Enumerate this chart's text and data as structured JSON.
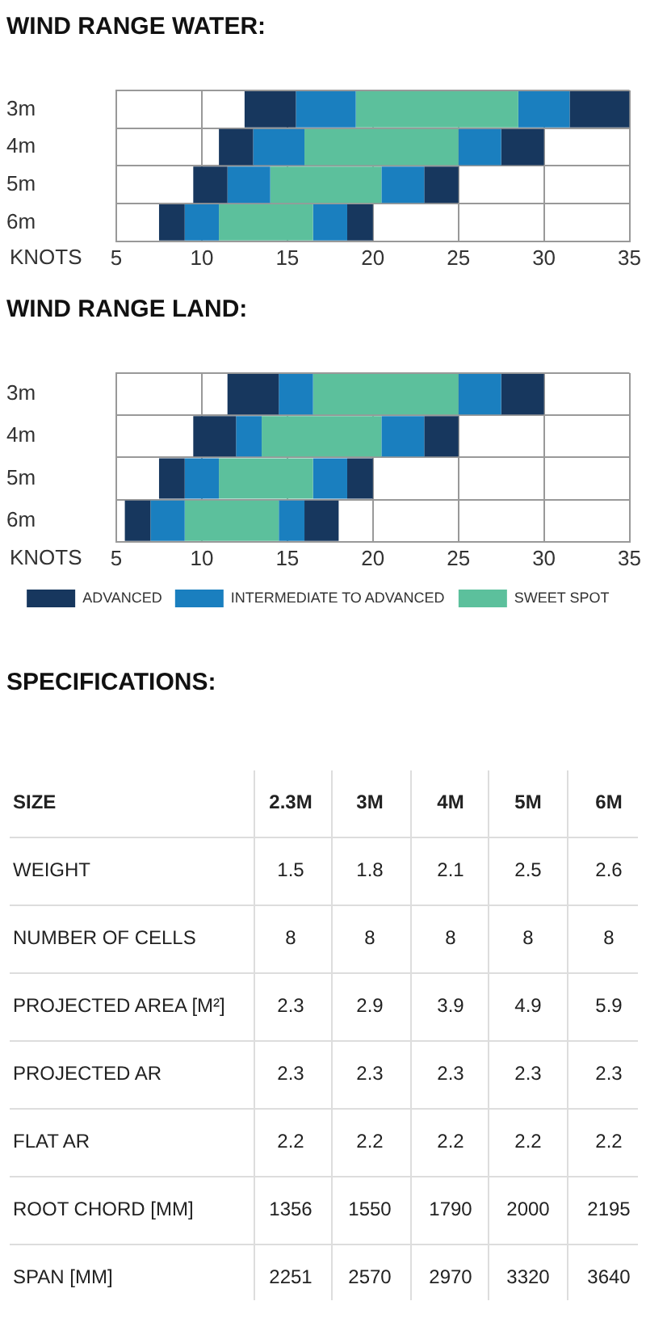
{
  "chart_data": [
    {
      "type": "bar",
      "title": "WIND RANGE WATER:",
      "orientation": "horizontal",
      "categories": [
        "3m",
        "4m",
        "5m",
        "6m"
      ],
      "series": [
        {
          "color": "#17375e",
          "base": [
            12.5,
            11,
            9.5,
            7.5
          ],
          "values": [
            3,
            2,
            2,
            1.5
          ]
        },
        {
          "color": "#1a7fbf",
          "base": [
            15.5,
            13,
            11.5,
            9
          ],
          "values": [
            3.5,
            3,
            2.5,
            2
          ]
        },
        {
          "color": "#5cc09c",
          "base": [
            19,
            16,
            14,
            11
          ],
          "values": [
            9.5,
            9,
            6.5,
            5.5
          ]
        },
        {
          "color": "#1a7fbf",
          "base": [
            28.5,
            25,
            20.5,
            16.5
          ],
          "values": [
            3,
            2.5,
            2.5,
            2
          ]
        },
        {
          "color": "#17375e",
          "base": [
            31.5,
            27.5,
            23,
            18.5
          ],
          "values": [
            3.5,
            2.5,
            2,
            1.5
          ]
        }
      ],
      "xlabel": "KNOTS",
      "xlim": [
        5,
        35
      ],
      "xticks": [
        5,
        10,
        15,
        20,
        25,
        30,
        35
      ],
      "grid": true
    },
    {
      "type": "bar",
      "title": "WIND RANGE LAND:",
      "orientation": "horizontal",
      "categories": [
        "3m",
        "4m",
        "5m",
        "6m"
      ],
      "series": [
        {
          "name": "ADVANCED",
          "color": "#17375e",
          "base": [
            11.5,
            9.5,
            7.5,
            5.5
          ],
          "values": [
            3,
            2.5,
            1.5,
            1.5
          ]
        },
        {
          "name": "INTERMEDIATE TO ADVANCED",
          "color": "#1a7fbf",
          "base": [
            14.5,
            12,
            9,
            7
          ],
          "values": [
            2,
            1.5,
            2,
            2
          ]
        },
        {
          "name": "SWEET SPOT",
          "color": "#5cc09c",
          "base": [
            16.5,
            13.5,
            11,
            9
          ],
          "values": [
            8.5,
            7,
            5.5,
            5.5
          ]
        },
        {
          "color": "#1a7fbf",
          "base": [
            25,
            20.5,
            16.5,
            14.5
          ],
          "values": [
            2.5,
            2.5,
            2,
            1.5
          ]
        },
        {
          "color": "#17375e",
          "base": [
            27.5,
            23,
            18.5,
            16
          ],
          "values": [
            2.5,
            2,
            1.5,
            2
          ]
        }
      ],
      "xlabel": "KNOTS",
      "xlim": [
        5,
        35
      ],
      "xticks": [
        5,
        10,
        15,
        20,
        25,
        30,
        35
      ],
      "grid": true,
      "legend": "bottom"
    },
    {
      "type": "heatmap",
      "title": "SPECIFICATIONS:",
      "ylabel": "SIZE",
      "data_labels": true,
      "categories": [
        "2.3M",
        "3M",
        "4M",
        "5M",
        "6M"
      ],
      "y_categories": [
        "WEIGHT",
        "NUMBER OF CELLS",
        "PROJECTED AREA [M²]",
        "PROJECTED AR",
        "FLAT AR",
        "ROOT CHORD [MM]",
        "SPAN [MM]"
      ],
      "cells": [
        [
          1.5,
          1.8,
          2.1,
          2.5,
          2.6
        ],
        [
          8,
          8,
          8,
          8,
          8
        ],
        [
          2.3,
          2.9,
          3.9,
          4.9,
          5.9
        ],
        [
          2.3,
          2.3,
          2.3,
          2.3,
          2.3
        ],
        [
          2.2,
          2.2,
          2.2,
          2.2,
          2.2
        ],
        [
          1356,
          1550,
          1790,
          2000,
          2195
        ],
        [
          2251,
          2570,
          2970,
          3320,
          3640
        ]
      ]
    }
  ]
}
